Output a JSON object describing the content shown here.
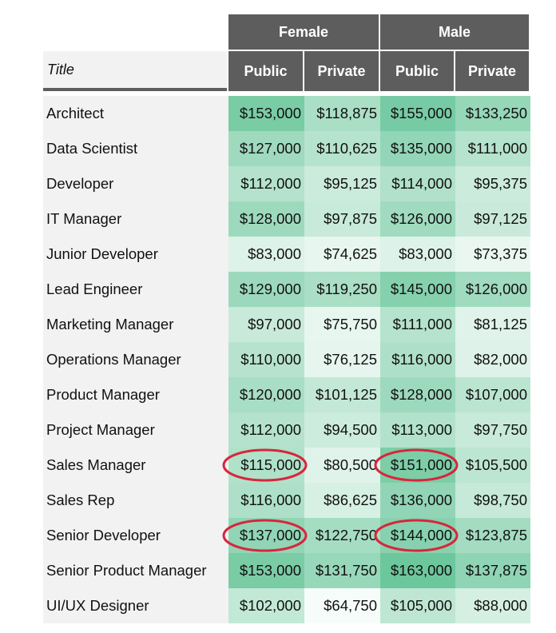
{
  "chart_data": {
    "type": "table",
    "title_header": "Title",
    "group_headers": [
      "Female",
      "Male"
    ],
    "sub_headers": [
      "Public",
      "Private",
      "Public",
      "Private"
    ],
    "rows": [
      {
        "title": "Architect",
        "values": [
          "$153,000",
          "$118,875",
          "$155,000",
          "$133,250"
        ]
      },
      {
        "title": "Data Scientist",
        "values": [
          "$127,000",
          "$110,625",
          "$135,000",
          "$111,000"
        ]
      },
      {
        "title": "Developer",
        "values": [
          "$112,000",
          "$95,125",
          "$114,000",
          "$95,375"
        ]
      },
      {
        "title": "IT Manager",
        "values": [
          "$128,000",
          "$97,875",
          "$126,000",
          "$97,125"
        ]
      },
      {
        "title": "Junior Developer",
        "values": [
          "$83,000",
          "$74,625",
          "$83,000",
          "$73,375"
        ]
      },
      {
        "title": "Lead Engineer",
        "values": [
          "$129,000",
          "$119,250",
          "$145,000",
          "$126,000"
        ]
      },
      {
        "title": "Marketing Manager",
        "values": [
          "$97,000",
          "$75,750",
          "$111,000",
          "$81,125"
        ]
      },
      {
        "title": "Operations Manager",
        "values": [
          "$110,000",
          "$76,125",
          "$116,000",
          "$82,000"
        ]
      },
      {
        "title": "Product Manager",
        "values": [
          "$120,000",
          "$101,125",
          "$128,000",
          "$107,000"
        ]
      },
      {
        "title": "Project Manager",
        "values": [
          "$112,000",
          "$94,500",
          "$113,000",
          "$97,750"
        ]
      },
      {
        "title": "Sales Manager",
        "values": [
          "$115,000",
          "$80,500",
          "$151,000",
          "$105,500"
        ]
      },
      {
        "title": "Sales Rep",
        "values": [
          "$116,000",
          "$86,625",
          "$136,000",
          "$98,750"
        ]
      },
      {
        "title": "Senior Developer",
        "values": [
          "$137,000",
          "$122,750",
          "$144,000",
          "$123,875"
        ]
      },
      {
        "title": "Senior Product Manager",
        "values": [
          "$153,000",
          "$131,750",
          "$163,000",
          "$137,875"
        ]
      },
      {
        "title": "UI/UX Designer",
        "values": [
          "$102,000",
          "$64,750",
          "$105,000",
          "$88,000"
        ]
      }
    ],
    "color_scale": {
      "low": "#ffffff",
      "high": "#6cc79c",
      "min_value": 64750,
      "max_value": 163000
    },
    "header_color": "#5d5d5d",
    "label_column_color": "#f2f2f2",
    "highlight_color": "#d7263d",
    "highlighted_cells": [
      {
        "row": "Sales Manager",
        "column": 0
      },
      {
        "row": "Sales Manager",
        "column": 2
      },
      {
        "row": "Senior Developer",
        "column": 0
      },
      {
        "row": "Senior Developer",
        "column": 2
      }
    ]
  }
}
